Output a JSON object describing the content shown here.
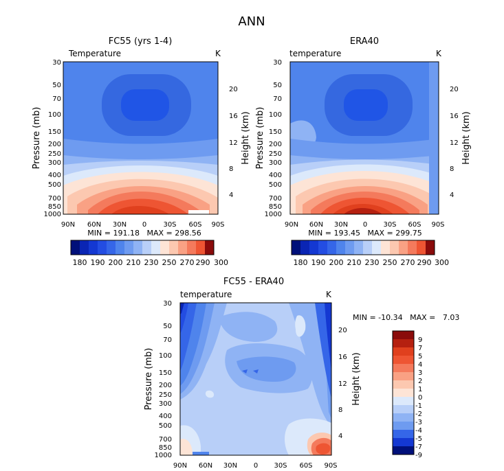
{
  "title": "ANN",
  "colors": {
    "cool_dark": "#00107a",
    "cool_light": "#dce9fb",
    "warm_light": "#fde4d6",
    "warm_dark": "#8a0b0b",
    "white": "#ffffff"
  },
  "chart_data": [
    {
      "type": "contour",
      "title": "FC55 (yrs 1-4)",
      "left_label": "Temperature",
      "right_label": "K",
      "ylabel": "Pressure (mb)",
      "y2label": "Height (km)",
      "x_ticks": [
        "90N",
        "60N",
        "30N",
        "0",
        "30S",
        "60S",
        "90S"
      ],
      "y_ticks": [
        "30",
        "50",
        "70",
        "100",
        "150",
        "200",
        "250",
        "300",
        "400",
        "500",
        "700",
        "850",
        "1000"
      ],
      "y2_ticks": [
        "20",
        "16",
        "12",
        "8",
        "4"
      ],
      "stats": "MIN = 191.18   MAX = 298.56",
      "min": 191.18,
      "max": 298.56,
      "colorbar_ticks": [
        "180",
        "190",
        "200",
        "210",
        "230",
        "250",
        "270",
        "290",
        "300"
      ]
    },
    {
      "type": "contour",
      "title": "ERA40",
      "left_label": "temperature",
      "right_label": "K",
      "ylabel": "Pressure (mb)",
      "y2label": "Height (km)",
      "x_ticks": [
        "90N",
        "60N",
        "30N",
        "0",
        "30S",
        "60S",
        "90S"
      ],
      "y_ticks": [
        "30",
        "50",
        "70",
        "100",
        "150",
        "200",
        "250",
        "300",
        "400",
        "500",
        "700",
        "850",
        "1000"
      ],
      "y2_ticks": [
        "20",
        "16",
        "12",
        "8",
        "4"
      ],
      "stats": "MIN = 193.45   MAX = 299.75",
      "min": 193.45,
      "max": 299.75,
      "colorbar_ticks": [
        "180",
        "190",
        "200",
        "210",
        "230",
        "250",
        "270",
        "290",
        "300"
      ]
    },
    {
      "type": "contour",
      "title": "FC55 - ERA40",
      "left_label": "temperature",
      "right_label": "K",
      "ylabel": "Pressure (mb)",
      "y2label": "Height (km)",
      "x_ticks": [
        "90N",
        "60N",
        "30N",
        "0",
        "30S",
        "60S",
        "90S"
      ],
      "y_ticks": [
        "30",
        "50",
        "70",
        "100",
        "150",
        "200",
        "250",
        "300",
        "400",
        "500",
        "700",
        "850",
        "1000"
      ],
      "y2_ticks": [
        "20",
        "16",
        "12",
        "8",
        "4"
      ],
      "stats": "MIN = -10.34   MAX =   7.03",
      "min": -10.34,
      "max": 7.03,
      "colorbar_ticks": [
        "9",
        "7",
        "5",
        "4",
        "3",
        "2",
        "1",
        "0",
        "-1",
        "-2",
        "-3",
        "-4",
        "-5",
        "-7",
        "-9"
      ]
    }
  ]
}
